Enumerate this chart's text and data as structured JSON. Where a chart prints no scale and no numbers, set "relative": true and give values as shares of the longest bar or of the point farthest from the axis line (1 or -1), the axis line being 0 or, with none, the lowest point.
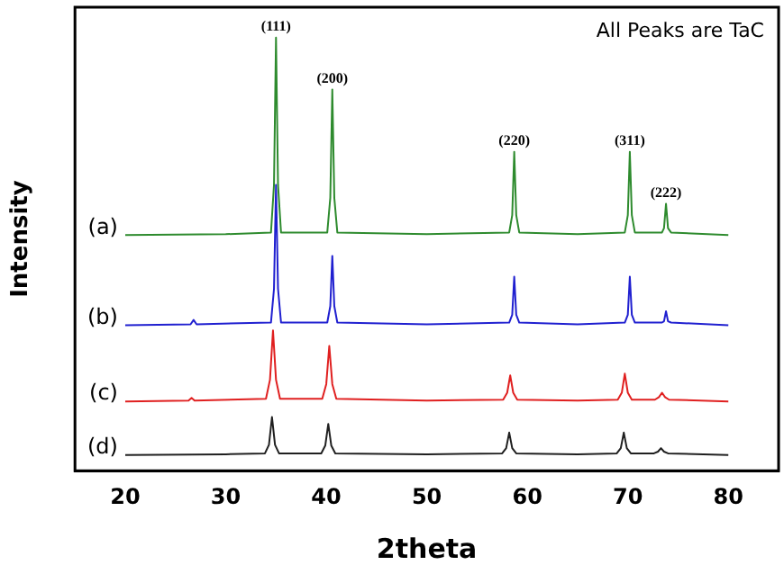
{
  "chart_data": {
    "type": "line",
    "xlabel": "2theta",
    "ylabel": "Intensity",
    "relative": true,
    "xlim": [
      15,
      85
    ],
    "xticks": [
      20,
      30,
      40,
      50,
      60,
      70,
      80
    ],
    "grid": false,
    "legend": false,
    "marker": "none",
    "line_style": "solid",
    "annotations": [
      "All Peaks are TaC",
      {
        "text": "(111)",
        "x": 35.0,
        "y": 1.0
      },
      {
        "text": "(200)",
        "x": 40.6,
        "y": 0.88
      },
      {
        "text": "(220)",
        "x": 58.7,
        "y": 0.736
      },
      {
        "text": "(311)",
        "x": 70.2,
        "y": 0.736
      },
      {
        "text": "(222)",
        "x": 73.8,
        "y": 0.616
      }
    ],
    "series": [
      {
        "name": "(a)",
        "color": "#2e8b2e",
        "x": [
          20,
          30,
          34.5,
          34.8,
          35.0,
          35.2,
          35.5,
          40.1,
          40.4,
          40.6,
          40.8,
          41.1,
          50,
          58.2,
          58.5,
          58.7,
          58.9,
          59.2,
          65,
          69.7,
          70.0,
          70.2,
          70.4,
          70.7,
          73.4,
          73.6,
          73.8,
          74.0,
          74.3,
          80
        ],
        "values": [
          0.544,
          0.546,
          0.55,
          0.66,
          1.0,
          0.66,
          0.55,
          0.55,
          0.63,
          0.88,
          0.63,
          0.55,
          0.546,
          0.55,
          0.59,
          0.736,
          0.59,
          0.55,
          0.546,
          0.55,
          0.59,
          0.736,
          0.59,
          0.55,
          0.55,
          0.56,
          0.616,
          0.56,
          0.55,
          0.544
        ]
      },
      {
        "name": "(b)",
        "color": "#2020d0",
        "x": [
          20,
          26.5,
          26.8,
          27.1,
          34.5,
          34.8,
          35.0,
          35.2,
          35.5,
          40.1,
          40.4,
          40.6,
          40.8,
          41.1,
          50,
          58.2,
          58.5,
          58.7,
          58.9,
          59.2,
          65,
          69.7,
          70.0,
          70.2,
          70.4,
          70.7,
          73.4,
          73.6,
          73.8,
          74.0,
          74.3,
          80
        ],
        "values": [
          0.336,
          0.338,
          0.348,
          0.338,
          0.342,
          0.42,
          0.66,
          0.42,
          0.342,
          0.342,
          0.38,
          0.496,
          0.38,
          0.342,
          0.338,
          0.342,
          0.36,
          0.448,
          0.36,
          0.342,
          0.338,
          0.342,
          0.36,
          0.448,
          0.36,
          0.342,
          0.342,
          0.345,
          0.368,
          0.345,
          0.342,
          0.336
        ]
      },
      {
        "name": "(c)",
        "color": "#e02020",
        "x": [
          20,
          26.3,
          26.6,
          26.9,
          34.0,
          34.4,
          34.7,
          35.0,
          35.4,
          39.6,
          40.0,
          40.3,
          40.6,
          41.0,
          50,
          57.6,
          58.0,
          58.3,
          58.6,
          59.0,
          65,
          69.0,
          69.4,
          69.7,
          70.0,
          70.4,
          72.7,
          73.1,
          73.4,
          73.7,
          74.1,
          80
        ],
        "values": [
          0.16,
          0.162,
          0.168,
          0.162,
          0.166,
          0.21,
          0.324,
          0.21,
          0.166,
          0.166,
          0.2,
          0.288,
          0.2,
          0.166,
          0.162,
          0.164,
          0.18,
          0.22,
          0.18,
          0.164,
          0.162,
          0.164,
          0.18,
          0.224,
          0.18,
          0.164,
          0.164,
          0.17,
          0.18,
          0.17,
          0.164,
          0.16
        ]
      },
      {
        "name": "(d)",
        "color": "#202020",
        "x": [
          20,
          30,
          33.9,
          34.3,
          34.6,
          34.9,
          35.3,
          39.5,
          39.9,
          40.2,
          40.5,
          40.9,
          50,
          57.5,
          57.9,
          58.2,
          58.5,
          58.9,
          65,
          68.9,
          69.3,
          69.6,
          69.9,
          70.3,
          72.6,
          73.0,
          73.3,
          73.6,
          74.0,
          80
        ],
        "values": [
          0.036,
          0.038,
          0.04,
          0.06,
          0.124,
          0.06,
          0.04,
          0.04,
          0.058,
          0.108,
          0.058,
          0.04,
          0.038,
          0.04,
          0.052,
          0.088,
          0.052,
          0.04,
          0.038,
          0.04,
          0.052,
          0.088,
          0.052,
          0.04,
          0.04,
          0.044,
          0.052,
          0.044,
          0.04,
          0.036
        ]
      }
    ]
  }
}
